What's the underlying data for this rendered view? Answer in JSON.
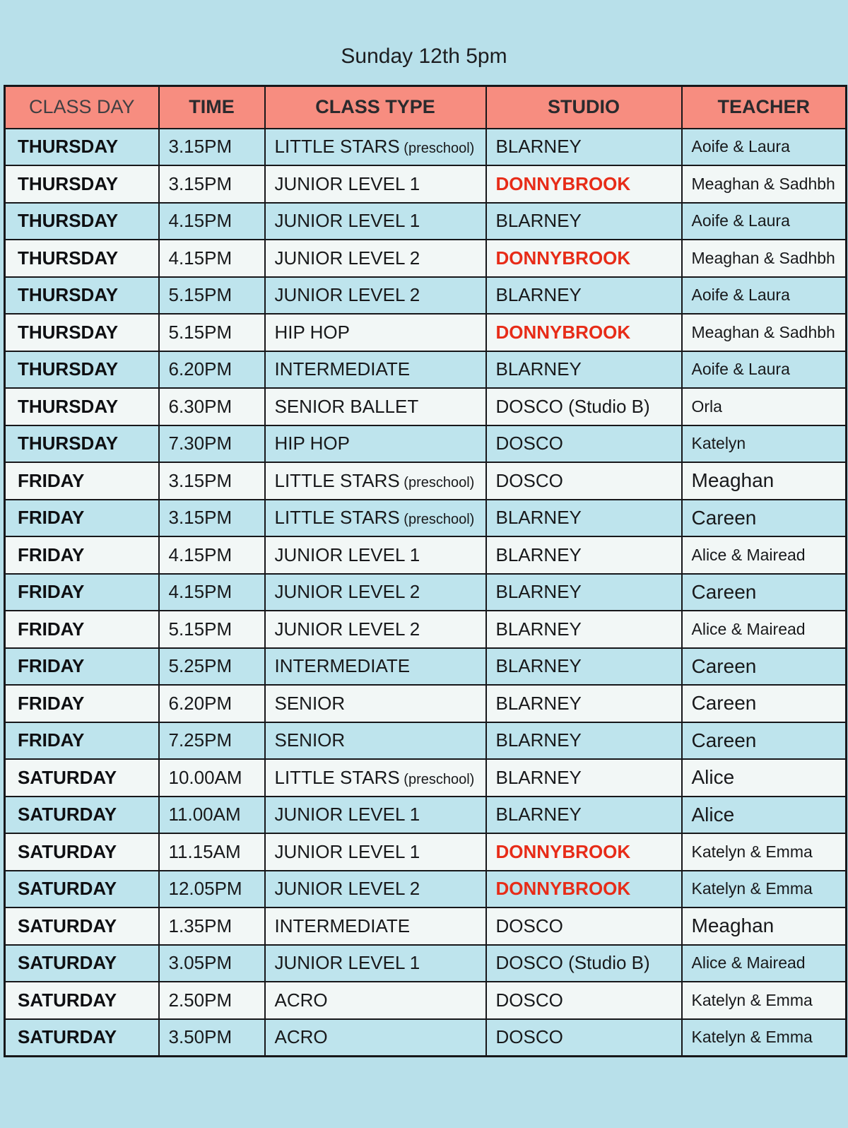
{
  "title": "Sunday 12th 5pm",
  "colors": {
    "background": "#b8e0ea",
    "header_bg": "#f78d80",
    "row_blue": "#bee4ed",
    "row_white": "#f2f7f6",
    "border": "#17171a",
    "studio_highlight_red": "#e72c18"
  },
  "table": {
    "columns": [
      "CLASS DAY",
      "TIME",
      "CLASS TYPE",
      "STUDIO",
      "TEACHER"
    ],
    "rows": [
      {
        "day": "THURSDAY",
        "time": "3.15PM",
        "class_type": "LITTLE STARS",
        "class_note": "(preschool)",
        "studio": "BLARNEY",
        "studio_red": false,
        "teacher": "Aoife & Laura",
        "teacher_large": false
      },
      {
        "day": "THURSDAY",
        "time": "3.15PM",
        "class_type": "JUNIOR LEVEL 1",
        "class_note": "",
        "studio": "DONNYBROOK",
        "studio_red": true,
        "teacher": "Meaghan & Sadhbh",
        "teacher_large": false
      },
      {
        "day": "THURSDAY",
        "time": "4.15PM",
        "class_type": "JUNIOR LEVEL 1",
        "class_note": "",
        "studio": "BLARNEY",
        "studio_red": false,
        "teacher": "Aoife & Laura",
        "teacher_large": false
      },
      {
        "day": "THURSDAY",
        "time": "4.15PM",
        "class_type": "JUNIOR LEVEL 2",
        "class_note": "",
        "studio": "DONNYBROOK",
        "studio_red": true,
        "teacher": "Meaghan & Sadhbh",
        "teacher_large": false
      },
      {
        "day": "THURSDAY",
        "time": "5.15PM",
        "class_type": "JUNIOR LEVEL 2",
        "class_note": "",
        "studio": "BLARNEY",
        "studio_red": false,
        "teacher": "Aoife & Laura",
        "teacher_large": false
      },
      {
        "day": "THURSDAY",
        "time": "5.15PM",
        "class_type": "HIP HOP",
        "class_note": "",
        "studio": "DONNYBROOK",
        "studio_red": true,
        "teacher": "Meaghan & Sadhbh",
        "teacher_large": false
      },
      {
        "day": "THURSDAY",
        "time": "6.20PM",
        "class_type": "INTERMEDIATE",
        "class_note": "",
        "studio": "BLARNEY",
        "studio_red": false,
        "teacher": "Aoife & Laura",
        "teacher_large": false
      },
      {
        "day": "THURSDAY",
        "time": "6.30PM",
        "class_type": "SENIOR BALLET",
        "class_note": "",
        "studio": "DOSCO (Studio B)",
        "studio_red": false,
        "teacher": "Orla",
        "teacher_large": false
      },
      {
        "day": "THURSDAY",
        "time": "7.30PM",
        "class_type": "HIP HOP",
        "class_note": "",
        "studio": "DOSCO",
        "studio_red": false,
        "teacher": "Katelyn",
        "teacher_large": false
      },
      {
        "day": "FRIDAY",
        "time": "3.15PM",
        "class_type": "LITTLE STARS",
        "class_note": "(preschool)",
        "studio": "DOSCO",
        "studio_red": false,
        "teacher": "Meaghan",
        "teacher_large": true
      },
      {
        "day": "FRIDAY",
        "time": "3.15PM",
        "class_type": "LITTLE STARS",
        "class_note": "(preschool)",
        "studio": "BLARNEY",
        "studio_red": false,
        "teacher": "Careen",
        "teacher_large": true
      },
      {
        "day": "FRIDAY",
        "time": "4.15PM",
        "class_type": "JUNIOR LEVEL 1",
        "class_note": "",
        "studio": "BLARNEY",
        "studio_red": false,
        "teacher": "Alice & Mairead",
        "teacher_large": false
      },
      {
        "day": "FRIDAY",
        "time": "4.15PM",
        "class_type": "JUNIOR LEVEL 2",
        "class_note": "",
        "studio": "BLARNEY",
        "studio_red": false,
        "teacher": "Careen",
        "teacher_large": true
      },
      {
        "day": "FRIDAY",
        "time": "5.15PM",
        "class_type": "JUNIOR LEVEL 2",
        "class_note": "",
        "studio": "BLARNEY",
        "studio_red": false,
        "teacher": "Alice & Mairead",
        "teacher_large": false
      },
      {
        "day": "FRIDAY",
        "time": "5.25PM",
        "class_type": "INTERMEDIATE",
        "class_note": "",
        "studio": "BLARNEY",
        "studio_red": false,
        "teacher": "Careen",
        "teacher_large": true
      },
      {
        "day": "FRIDAY",
        "time": "6.20PM",
        "class_type": "SENIOR",
        "class_note": "",
        "studio": "BLARNEY",
        "studio_red": false,
        "teacher": "Careen",
        "teacher_large": true
      },
      {
        "day": "FRIDAY",
        "time": "7.25PM",
        "class_type": "SENIOR",
        "class_note": "",
        "studio": "BLARNEY",
        "studio_red": false,
        "teacher": "Careen",
        "teacher_large": true
      },
      {
        "day": "SATURDAY",
        "time": "10.00AM",
        "class_type": "LITTLE STARS",
        "class_note": "(preschool)",
        "studio": "BLARNEY",
        "studio_red": false,
        "teacher": "Alice",
        "teacher_large": true
      },
      {
        "day": "SATURDAY",
        "time": "11.00AM",
        "class_type": "JUNIOR LEVEL 1",
        "class_note": "",
        "studio": "BLARNEY",
        "studio_red": false,
        "teacher": "Alice",
        "teacher_large": true
      },
      {
        "day": "SATURDAY",
        "time": "11.15AM",
        "class_type": "JUNIOR LEVEL 1",
        "class_note": "",
        "studio": "DONNYBROOK",
        "studio_red": true,
        "teacher": "Katelyn & Emma",
        "teacher_large": false
      },
      {
        "day": "SATURDAY",
        "time": "12.05PM",
        "class_type": "JUNIOR LEVEL 2",
        "class_note": "",
        "studio": "DONNYBROOK",
        "studio_red": true,
        "teacher": "Katelyn & Emma",
        "teacher_large": false
      },
      {
        "day": "SATURDAY",
        "time": "1.35PM",
        "class_type": "INTERMEDIATE",
        "class_note": "",
        "studio": "DOSCO",
        "studio_red": false,
        "teacher": "Meaghan",
        "teacher_large": true
      },
      {
        "day": "SATURDAY",
        "time": "3.05PM",
        "class_type": "JUNIOR LEVEL 1",
        "class_note": "",
        "studio": "DOSCO (Studio B)",
        "studio_red": false,
        "teacher": "Alice & Mairead",
        "teacher_large": false
      },
      {
        "day": "SATURDAY",
        "time": "2.50PM",
        "class_type": "ACRO",
        "class_note": "",
        "studio": "DOSCO",
        "studio_red": false,
        "teacher": "Katelyn & Emma",
        "teacher_large": false
      },
      {
        "day": "SATURDAY",
        "time": "3.50PM",
        "class_type": "ACRO",
        "class_note": "",
        "studio": "DOSCO",
        "studio_red": false,
        "teacher": "Katelyn & Emma",
        "teacher_large": false
      }
    ]
  }
}
